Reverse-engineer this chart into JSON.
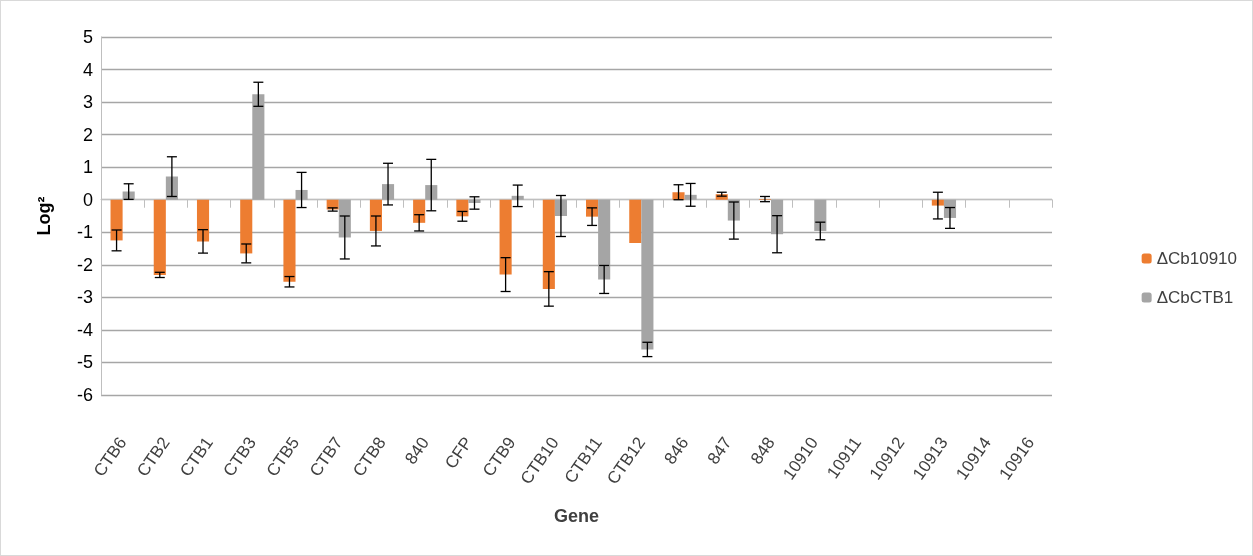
{
  "chart_data": {
    "type": "bar",
    "xlabel": "Gene",
    "ylabel": "Log²",
    "categories": [
      "CTB6",
      "CTB2",
      "CTB1",
      "CTB3",
      "CTB5",
      "CTB7",
      "CTB8",
      "840",
      "CFP",
      "CTB9",
      "CTB10",
      "CTB11",
      "CTB12",
      "846",
      "847",
      "848",
      "10910",
      "10911",
      "10912",
      "10913",
      "10914",
      "10916"
    ],
    "series": [
      {
        "name": "ΔCb10910",
        "color": "#ed7d31",
        "values": [
          -1.25,
          -2.31,
          -1.28,
          -1.65,
          -2.52,
          -0.3,
          -0.96,
          -0.71,
          -0.51,
          -2.3,
          -2.74,
          -0.52,
          -1.33,
          0.23,
          0.17,
          0.02,
          0,
          0,
          0,
          -0.18,
          0,
          0
        ],
        "errors": [
          0.32,
          0.08,
          0.36,
          0.29,
          0.16,
          0.05,
          0.46,
          0.25,
          0.15,
          0.52,
          0.53,
          0.27,
          null,
          0.23,
          0.06,
          0.08,
          null,
          null,
          null,
          0.41,
          null,
          null
        ]
      },
      {
        "name": "ΔCbCTB1",
        "color": "#a5a5a5",
        "values": [
          0.25,
          0.71,
          0,
          3.24,
          0.3,
          -1.16,
          0.48,
          0.45,
          -0.1,
          0.12,
          -0.5,
          -2.45,
          -4.6,
          0.15,
          -0.64,
          -1.06,
          -0.96,
          0,
          0,
          -0.56,
          0,
          0
        ],
        "errors": [
          0.24,
          0.61,
          null,
          0.37,
          0.54,
          0.66,
          0.64,
          0.79,
          0.19,
          0.33,
          0.63,
          0.43,
          0.22,
          0.35,
          0.57,
          0.57,
          0.27,
          null,
          null,
          0.32,
          null,
          null
        ]
      }
    ],
    "ylim": [
      -6,
      5
    ],
    "yticks": [
      -6,
      -5,
      -4,
      -3,
      -2,
      -1,
      0,
      1,
      2,
      3,
      4,
      5
    ],
    "grid": "y",
    "legend": "right"
  }
}
